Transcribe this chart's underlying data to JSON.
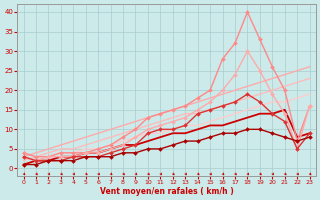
{
  "xlabel": "Vent moyen/en rafales ( km/h )",
  "xlim": [
    -0.5,
    23.5
  ],
  "ylim": [
    -2,
    42
  ],
  "yticks": [
    0,
    5,
    10,
    15,
    20,
    25,
    30,
    35,
    40
  ],
  "xticks": [
    0,
    1,
    2,
    3,
    4,
    5,
    6,
    7,
    8,
    9,
    10,
    11,
    12,
    13,
    14,
    15,
    16,
    17,
    18,
    19,
    20,
    21,
    22,
    23
  ],
  "bg_color": "#cceaea",
  "grid_color": "#aacccc",
  "lines": [
    {
      "x": [
        0,
        1,
        2,
        3,
        4,
        5,
        6,
        7,
        8,
        9,
        10,
        11,
        12,
        13,
        14,
        15,
        16,
        17,
        18,
        19,
        20,
        21,
        22,
        23
      ],
      "y": [
        3,
        4,
        5,
        6,
        7,
        8,
        9,
        10,
        11,
        12,
        13,
        14,
        15,
        16,
        17,
        18,
        19,
        20,
        21,
        22,
        23,
        24,
        25,
        26
      ],
      "color": "#ffaaaa",
      "lw": 1.0,
      "marker": null,
      "ms": 0,
      "alpha": 1.0
    },
    {
      "x": [
        0,
        1,
        2,
        3,
        4,
        5,
        6,
        7,
        8,
        9,
        10,
        11,
        12,
        13,
        14,
        15,
        16,
        17,
        18,
        19,
        20,
        21,
        22,
        23
      ],
      "y": [
        2,
        3,
        4,
        5,
        5,
        6,
        7,
        8,
        9,
        10,
        11,
        12,
        13,
        14,
        14,
        15,
        16,
        17,
        18,
        19,
        20,
        21,
        22,
        23
      ],
      "color": "#ffbbbb",
      "lw": 1.0,
      "marker": null,
      "ms": 0,
      "alpha": 1.0
    },
    {
      "x": [
        0,
        1,
        2,
        3,
        4,
        5,
        6,
        7,
        8,
        9,
        10,
        11,
        12,
        13,
        14,
        15,
        16,
        17,
        18,
        19,
        20,
        21,
        22,
        23
      ],
      "y": [
        1,
        2,
        3,
        4,
        4,
        5,
        5,
        6,
        7,
        8,
        9,
        9,
        10,
        11,
        11,
        12,
        13,
        14,
        15,
        16,
        17,
        17,
        18,
        19
      ],
      "color": "#ffcccc",
      "lw": 1.0,
      "marker": null,
      "ms": 0,
      "alpha": 1.0
    },
    {
      "x": [
        0,
        1,
        2,
        3,
        4,
        5,
        6,
        7,
        8,
        9,
        10,
        11,
        12,
        13,
        14,
        15,
        16,
        17,
        18,
        19,
        20,
        21,
        22,
        23
      ],
      "y": [
        4,
        3,
        3,
        4,
        4,
        4,
        5,
        6,
        8,
        10,
        13,
        14,
        15,
        16,
        18,
        20,
        28,
        32,
        40,
        33,
        26,
        20,
        7,
        16
      ],
      "color": "#ff8888",
      "lw": 1.0,
      "marker": "D",
      "ms": 2.0,
      "alpha": 1.0
    },
    {
      "x": [
        0,
        1,
        2,
        3,
        4,
        5,
        6,
        7,
        8,
        9,
        10,
        11,
        12,
        13,
        14,
        15,
        16,
        17,
        18,
        19,
        20,
        21,
        22,
        23
      ],
      "y": [
        3,
        2,
        3,
        3,
        3,
        4,
        4,
        5,
        6,
        8,
        10,
        11,
        12,
        13,
        15,
        17,
        20,
        24,
        30,
        25,
        19,
        14,
        5,
        16
      ],
      "color": "#ffaaaa",
      "lw": 1.0,
      "marker": "D",
      "ms": 2.0,
      "alpha": 1.0
    },
    {
      "x": [
        0,
        1,
        2,
        3,
        4,
        5,
        6,
        7,
        8,
        9,
        10,
        11,
        12,
        13,
        14,
        15,
        16,
        17,
        18,
        19,
        20,
        21,
        22,
        23
      ],
      "y": [
        3,
        2,
        2,
        2,
        3,
        3,
        3,
        4,
        5,
        6,
        9,
        10,
        10,
        11,
        14,
        15,
        16,
        17,
        19,
        17,
        14,
        12,
        5,
        9
      ],
      "color": "#dd3333",
      "lw": 1.0,
      "marker": "D",
      "ms": 2.0,
      "alpha": 1.0
    },
    {
      "x": [
        0,
        1,
        2,
        3,
        4,
        5,
        6,
        7,
        8,
        9,
        10,
        11,
        12,
        13,
        14,
        15,
        16,
        17,
        18,
        19,
        20,
        21,
        22,
        23
      ],
      "y": [
        1,
        2,
        2,
        3,
        3,
        4,
        4,
        5,
        6,
        6,
        7,
        8,
        9,
        9,
        10,
        11,
        11,
        12,
        13,
        14,
        14,
        15,
        8,
        9
      ],
      "color": "#cc0000",
      "lw": 1.3,
      "marker": null,
      "ms": 0,
      "alpha": 1.0
    },
    {
      "x": [
        0,
        1,
        2,
        3,
        4,
        5,
        6,
        7,
        8,
        9,
        10,
        11,
        12,
        13,
        14,
        15,
        16,
        17,
        18,
        19,
        20,
        21,
        22,
        23
      ],
      "y": [
        1,
        1,
        2,
        2,
        2,
        3,
        3,
        3,
        4,
        4,
        5,
        5,
        6,
        7,
        7,
        8,
        9,
        9,
        10,
        10,
        9,
        8,
        7,
        8
      ],
      "color": "#aa0000",
      "lw": 1.0,
      "marker": "D",
      "ms": 2.0,
      "alpha": 1.0
    }
  ],
  "arrow_color": "#cc0000",
  "xlabel_color": "#cc0000",
  "tick_color": "#cc0000",
  "axis_color": "#999999"
}
